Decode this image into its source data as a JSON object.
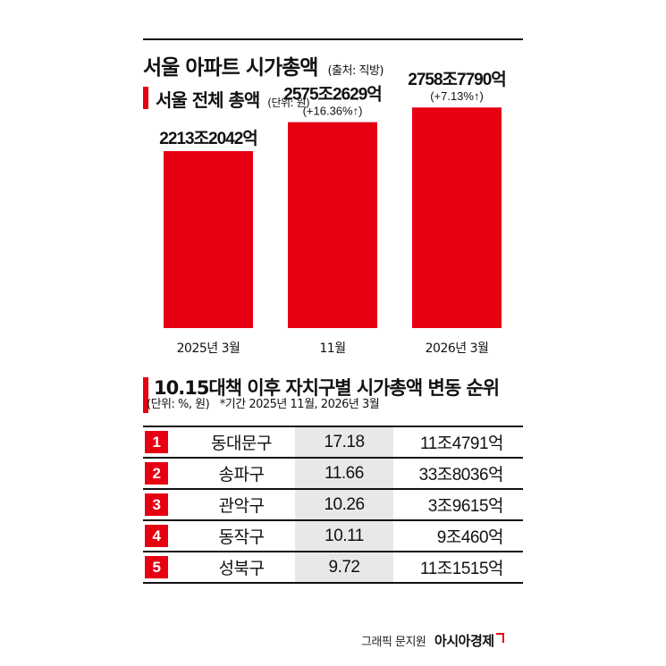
{
  "header": {
    "title": "서울 아파트 시가총액",
    "source": "(출처: 직방)"
  },
  "chart_section": {
    "title": "서울 전체 총액",
    "unit": "(단위: 원)"
  },
  "chart_data": {
    "type": "bar",
    "title": "서울 전체 총액",
    "categories": [
      "2025년 3월",
      "11월",
      "2026년 3월"
    ],
    "values": [
      2213.2042,
      2575.2629,
      2758.779
    ],
    "value_labels": [
      "2213조2042억",
      "2575조2629억",
      "2758조7790억"
    ],
    "change_labels": [
      "",
      "(+16.36%↑)",
      "(+7.13%↑)"
    ],
    "ylabel": "",
    "value_unit": "조원",
    "ylim": [
      0,
      3600
    ],
    "grid": false,
    "legend": "none",
    "bar_color": "#e60012"
  },
  "ranking_section": {
    "title": "10.15대책 이후 자치구별 시가총액 변동 순위",
    "unit_note": "(단위: %, 원)",
    "period_note": "*기간 2025년 11월, 2026년 3월"
  },
  "ranking": [
    {
      "rank": "1",
      "district": "동대문구",
      "rate": "17.18",
      "market_cap": "11조4791억"
    },
    {
      "rank": "2",
      "district": "송파구",
      "rate": "11.66",
      "market_cap": "33조8036억"
    },
    {
      "rank": "3",
      "district": "관악구",
      "rate": "10.26",
      "market_cap": "3조9615억"
    },
    {
      "rank": "4",
      "district": "동작구",
      "rate": "10.11",
      "market_cap": "9조460억"
    },
    {
      "rank": "5",
      "district": "성북구",
      "rate": "9.72",
      "market_cap": "11조1515억"
    }
  ],
  "footer": {
    "credit": "그래픽 문지원",
    "brand": "아시아경제"
  },
  "colors": {
    "accent": "#e60012",
    "rate_column_bg": "#e8e8e8",
    "text": "#111111"
  }
}
